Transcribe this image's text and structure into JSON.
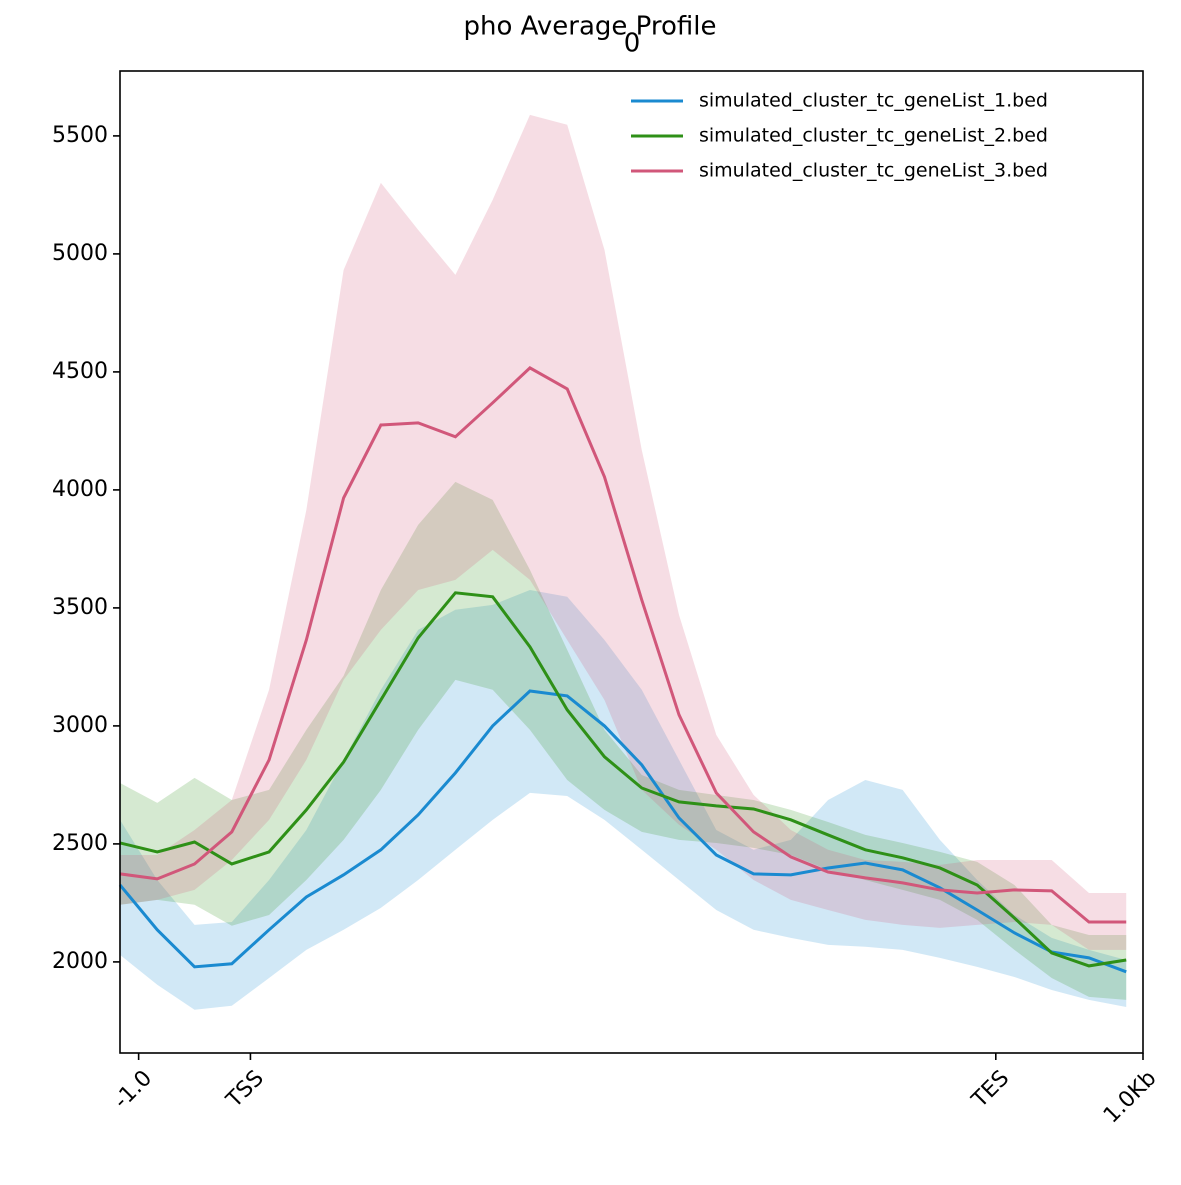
{
  "chart_data": {
    "type": "line",
    "title": "pho Average Profile",
    "subtitle": "0",
    "x": [
      0,
      1,
      2,
      3,
      4,
      5,
      6,
      7,
      8,
      9,
      10,
      11,
      12,
      13,
      14,
      15,
      16,
      17,
      18,
      19,
      20,
      21,
      22,
      23,
      24,
      25,
      26,
      27
    ],
    "xlim": [
      0,
      27.45
    ],
    "xticks": [
      {
        "value": 0.5,
        "label": "-1.0"
      },
      {
        "value": 3.5,
        "label": "TSS"
      },
      {
        "value": 23.5,
        "label": "TES"
      },
      {
        "value": 27.45,
        "label": "1.0Kb"
      }
    ],
    "ylim": [
      1614,
      5775
    ],
    "yticks": [
      2000,
      2500,
      3000,
      3500,
      4000,
      4500,
      5000,
      5500
    ],
    "legend": "upper right",
    "series": [
      {
        "name": "simulated_cluster_tc_geneList_1.bed",
        "color": "#1a8ad0",
        "values": [
          2326,
          2136,
          1979,
          1992,
          2136,
          2275,
          2369,
          2475,
          2623,
          2801,
          3000,
          3148,
          3127,
          3000,
          2835,
          2610,
          2453,
          2373,
          2369,
          2398,
          2419,
          2390,
          2314,
          2220,
          2123,
          2042,
          2017,
          1958
        ],
        "upper": [
          2602,
          2347,
          2157,
          2169,
          2347,
          2559,
          2856,
          3153,
          3407,
          3492,
          3513,
          3576,
          3547,
          3364,
          3153,
          2856,
          2559,
          2475,
          2517,
          2686,
          2771,
          2729,
          2517,
          2347,
          2199,
          2102,
          2051,
          2008
        ],
        "lower": [
          2030,
          1903,
          1797,
          1814,
          1932,
          2051,
          2136,
          2229,
          2347,
          2475,
          2602,
          2716,
          2703,
          2602,
          2475,
          2347,
          2220,
          2136,
          2102,
          2072,
          2064,
          2051,
          2017,
          1979,
          1936,
          1881,
          1839,
          1809
        ]
      },
      {
        "name": "simulated_cluster_tc_geneList_2.bed",
        "color": "#2e9017",
        "values": [
          2504,
          2466,
          2508,
          2415,
          2466,
          2644,
          2847,
          3110,
          3373,
          3564,
          3547,
          3335,
          3068,
          2869,
          2737,
          2678,
          2661,
          2648,
          2602,
          2538,
          2475,
          2441,
          2398,
          2326,
          2186,
          2038,
          1983,
          2008
        ],
        "upper": [
          2758,
          2674,
          2780,
          2686,
          2729,
          2983,
          3212,
          3576,
          3852,
          4034,
          3958,
          3661,
          3322,
          2983,
          2792,
          2729,
          2707,
          2686,
          2644,
          2593,
          2538,
          2504,
          2466,
          2424,
          2326,
          2157,
          2114,
          2114
        ],
        "lower": [
          2242,
          2263,
          2242,
          2153,
          2199,
          2347,
          2517,
          2729,
          2983,
          3195,
          3153,
          2983,
          2771,
          2644,
          2551,
          2517,
          2504,
          2483,
          2453,
          2390,
          2347,
          2305,
          2263,
          2178,
          2051,
          1932,
          1852,
          1839
        ]
      },
      {
        "name": "simulated_cluster_tc_geneList_3.bed",
        "color": "#d1577a",
        "values": [
          2373,
          2352,
          2415,
          2551,
          2856,
          3364,
          3966,
          4275,
          4284,
          4225,
          4369,
          4517,
          4428,
          4055,
          3534,
          3047,
          2716,
          2551,
          2445,
          2381,
          2356,
          2335,
          2305,
          2292,
          2305,
          2301,
          2169,
          2169
        ],
        "upper": [
          2453,
          2453,
          2559,
          2686,
          3153,
          3915,
          4932,
          5301,
          5102,
          4911,
          5229,
          5589,
          5547,
          5017,
          4169,
          3470,
          2962,
          2708,
          2559,
          2475,
          2432,
          2424,
          2411,
          2432,
          2432,
          2432,
          2292,
          2292
        ],
        "lower": [
          2242,
          2263,
          2305,
          2432,
          2602,
          2856,
          3195,
          3407,
          3576,
          3619,
          3746,
          3619,
          3364,
          3110,
          2729,
          2581,
          2475,
          2347,
          2263,
          2220,
          2178,
          2157,
          2144,
          2157,
          2169,
          2157,
          2051,
          2051
        ]
      }
    ]
  }
}
